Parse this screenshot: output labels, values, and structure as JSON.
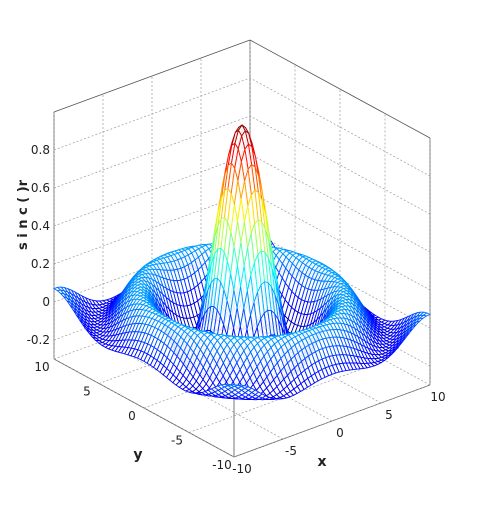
{
  "chart_data": {
    "type": "surface",
    "title": "",
    "function": "sin(r)/r, r = sqrt(x^2 + y^2)",
    "xlabel": "x",
    "ylabel": "y",
    "zlabel": "sinc(r)",
    "zlabel_display": "s i n c ( )​r",
    "xlim": [
      -10,
      10
    ],
    "ylim": [
      -10,
      10
    ],
    "zlim": [
      -0.3,
      1
    ],
    "x_ticks": [
      -10,
      -5,
      0,
      5,
      10
    ],
    "y_ticks": [
      -10,
      -5,
      0,
      5,
      10
    ],
    "z_ticks": [
      -0.2,
      0,
      0.2,
      0.4,
      0.6,
      0.8
    ],
    "x_tick_labels": [
      "-10",
      "-5",
      "0",
      "5",
      "10"
    ],
    "y_tick_labels": [
      "-10",
      "-5",
      "0",
      "5",
      "10"
    ],
    "z_tick_labels": [
      "-0.2",
      "0",
      "0.2",
      "0.4",
      "0.6",
      "0.8"
    ],
    "peak_value": 1,
    "grid": true,
    "colormap": "jet",
    "colormap_stops": [
      "#00008f",
      "#0000ff",
      "#007fff",
      "#00ffff",
      "#7fff7f",
      "#ffff00",
      "#ff7f00",
      "#ff0000",
      "#7f0000"
    ],
    "render": "mesh wireframe"
  }
}
